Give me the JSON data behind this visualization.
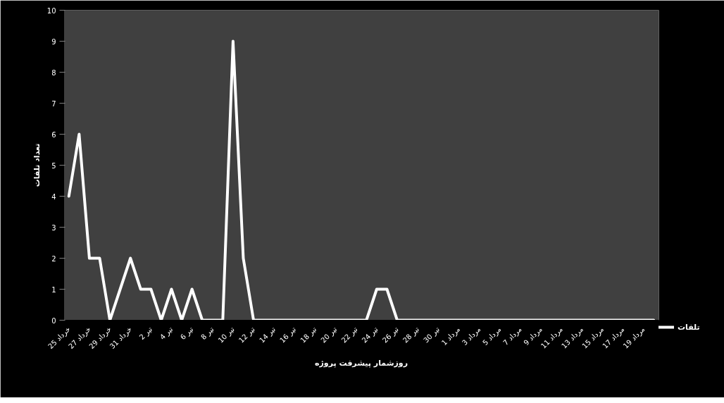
{
  "chart_data": {
    "type": "line",
    "xlabel": "روزشمار پیشرفت پروژه",
    "ylabel": "تعداد تلفات",
    "categories": [
      "25 خرداد",
      null,
      "27 خرداد",
      null,
      "29 خرداد",
      null,
      "31 خرداد",
      null,
      "2 تیر",
      null,
      "4 تیر",
      null,
      "6 تیر",
      null,
      "8 تیر",
      null,
      "10 تیر",
      null,
      "12 تیر",
      null,
      "14 تیر",
      null,
      "16 تیر",
      null,
      "18 تیر",
      null,
      "20 تیر",
      null,
      "22 تیر",
      null,
      "24 تیر",
      null,
      "26 تیر",
      null,
      "28 تیر",
      null,
      "30 تیر",
      null,
      "1 مرداد",
      null,
      "3 مرداد",
      null,
      "5 مرداد",
      null,
      "7 مرداد",
      null,
      "9 مرداد",
      null,
      "11 مرداد",
      null,
      "13 مرداد",
      null,
      "15 مرداد",
      null,
      "17 مرداد",
      null,
      "19 مرداد",
      null
    ],
    "series": [
      {
        "name": "تلفات",
        "color": "#ffffff",
        "values": [
          4,
          6,
          2,
          2,
          0,
          1,
          2,
          1,
          1,
          0,
          1,
          0,
          1,
          0,
          0,
          0,
          9,
          2,
          0,
          0,
          0,
          0,
          0,
          0,
          0,
          0,
          0,
          0,
          0,
          0,
          1,
          1,
          0,
          0,
          0,
          0,
          0,
          0,
          0,
          0,
          0,
          0,
          0,
          0,
          0,
          0,
          0,
          0,
          0,
          0,
          0,
          0,
          0,
          0,
          0,
          0,
          0,
          0
        ]
      }
    ],
    "ylim": [
      0,
      10
    ],
    "yticks": [
      0,
      1,
      2,
      3,
      4,
      5,
      6,
      7,
      8,
      9,
      10
    ],
    "grid": false,
    "legend": "right",
    "marker": "none",
    "line_style": "solid"
  }
}
